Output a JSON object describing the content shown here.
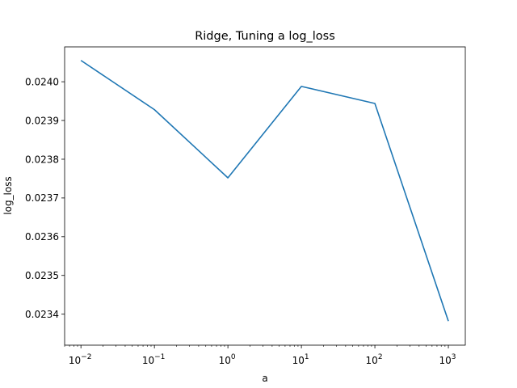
{
  "chart_data": {
    "type": "line",
    "title": "Ridge, Tuning a log_loss",
    "xlabel": "a",
    "ylabel": "log_loss",
    "xscale": "log",
    "xlim": [
      0.006,
      1700
    ],
    "ylim": [
      0.02332,
      0.02409
    ],
    "x": [
      0.01,
      0.1,
      1,
      10,
      100,
      1000
    ],
    "series": [
      {
        "color": "#1f77b4",
        "values": [
          0.024055,
          0.023928,
          0.023752,
          0.023988,
          0.023944,
          0.023382
        ]
      }
    ],
    "x_ticks": [
      {
        "value": 0.01,
        "base": "10",
        "exp": "−2"
      },
      {
        "value": 0.1,
        "base": "10",
        "exp": "−1"
      },
      {
        "value": 1,
        "base": "10",
        "exp": "0"
      },
      {
        "value": 10,
        "base": "10",
        "exp": "1"
      },
      {
        "value": 100,
        "base": "10",
        "exp": "2"
      },
      {
        "value": 1000,
        "base": "10",
        "exp": "3"
      }
    ],
    "y_ticks": [
      "0.0234",
      "0.0235",
      "0.0236",
      "0.0237",
      "0.0238",
      "0.0239",
      "0.0240"
    ],
    "grid": false,
    "legend": "none"
  }
}
